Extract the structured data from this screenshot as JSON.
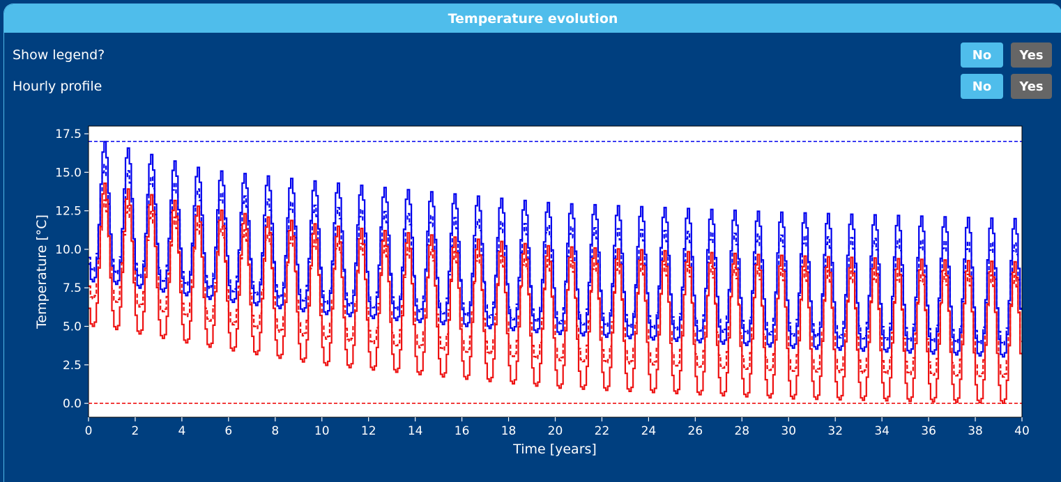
{
  "panel": {
    "title": "Temperature evolution"
  },
  "controls": {
    "show_legend": {
      "label": "Show legend?",
      "no": "No",
      "yes": "Yes",
      "selected": "No"
    },
    "hourly_profile": {
      "label": "Hourly profile",
      "no": "No",
      "yes": "Yes",
      "selected": "No"
    }
  },
  "colors": {
    "background": "#003f7f",
    "header": "#4fbdeb",
    "button_active": "#4fbdeb",
    "button_inactive": "#666666",
    "series_blue": "#0000ee",
    "series_red": "#ee1111"
  },
  "chart_data": {
    "type": "line",
    "title": "",
    "xlabel": "Time [years]",
    "ylabel": "Temperature [°C]",
    "xlim": [
      0,
      40
    ],
    "ylim": [
      -0.9,
      18
    ],
    "xticks": [
      0,
      2,
      4,
      6,
      8,
      10,
      12,
      14,
      16,
      18,
      20,
      22,
      24,
      26,
      28,
      30,
      32,
      34,
      36,
      38,
      40
    ],
    "yticks": [
      0.0,
      2.5,
      5.0,
      7.5,
      10.0,
      12.5,
      15.0,
      17.5
    ],
    "ytick_labels": [
      "0.0",
      "2.5",
      "5.0",
      "7.5",
      "10.0",
      "12.5",
      "15.0",
      "17.5"
    ],
    "grid": false,
    "legend": "none",
    "hlines": [
      {
        "y": 17.0,
        "color": "#0000ee",
        "style": "dashed"
      },
      {
        "y": 0.0,
        "color": "#ee1111",
        "style": "dashed"
      }
    ],
    "series": [
      {
        "color": "#0000ee",
        "style": "solid",
        "period_years": 1,
        "peak": {
          "years": [
            0.7,
            5,
            10,
            20,
            30,
            39.5
          ],
          "values": [
            17.0,
            15.2,
            14.4,
            13.0,
            12.4,
            12.0
          ]
        },
        "trough": {
          "years": [
            0.5,
            5,
            10,
            20,
            30,
            39.5
          ],
          "values": [
            7.9,
            6.8,
            5.8,
            4.5,
            3.6,
            3.0
          ]
        }
      },
      {
        "color": "#0000ee",
        "style": "dashed",
        "period_years": 1,
        "peak": {
          "years": [
            0.7,
            5,
            10,
            20,
            30,
            39.5
          ],
          "values": [
            15.5,
            13.8,
            12.8,
            11.5,
            10.9,
            10.4
          ]
        },
        "trough": {
          "years": [
            0.5,
            5,
            10,
            20,
            30,
            39.5
          ],
          "values": [
            8.6,
            7.5,
            6.5,
            5.2,
            4.4,
            3.8
          ]
        }
      },
      {
        "color": "#ee1111",
        "style": "solid",
        "period_years": 1,
        "peak": {
          "years": [
            0.7,
            5,
            10,
            20,
            30,
            39.5
          ],
          "values": [
            14.3,
            12.7,
            11.6,
            10.2,
            9.6,
            9.2
          ]
        },
        "trough": {
          "years": [
            0.5,
            5,
            10,
            20,
            30,
            39.5
          ],
          "values": [
            5.0,
            3.7,
            2.5,
            1.0,
            0.3,
            0.0
          ]
        }
      },
      {
        "color": "#ee1111",
        "style": "dashed",
        "period_years": 1,
        "peak": {
          "years": [
            0.7,
            5,
            10,
            20,
            30,
            39.5
          ],
          "values": [
            13.2,
            11.6,
            10.6,
            9.3,
            8.7,
            8.3
          ]
        },
        "trough": {
          "years": [
            0.5,
            5,
            10,
            20,
            30,
            39.5
          ],
          "values": [
            6.8,
            5.4,
            4.2,
            2.8,
            2.1,
            1.7
          ]
        }
      }
    ]
  }
}
